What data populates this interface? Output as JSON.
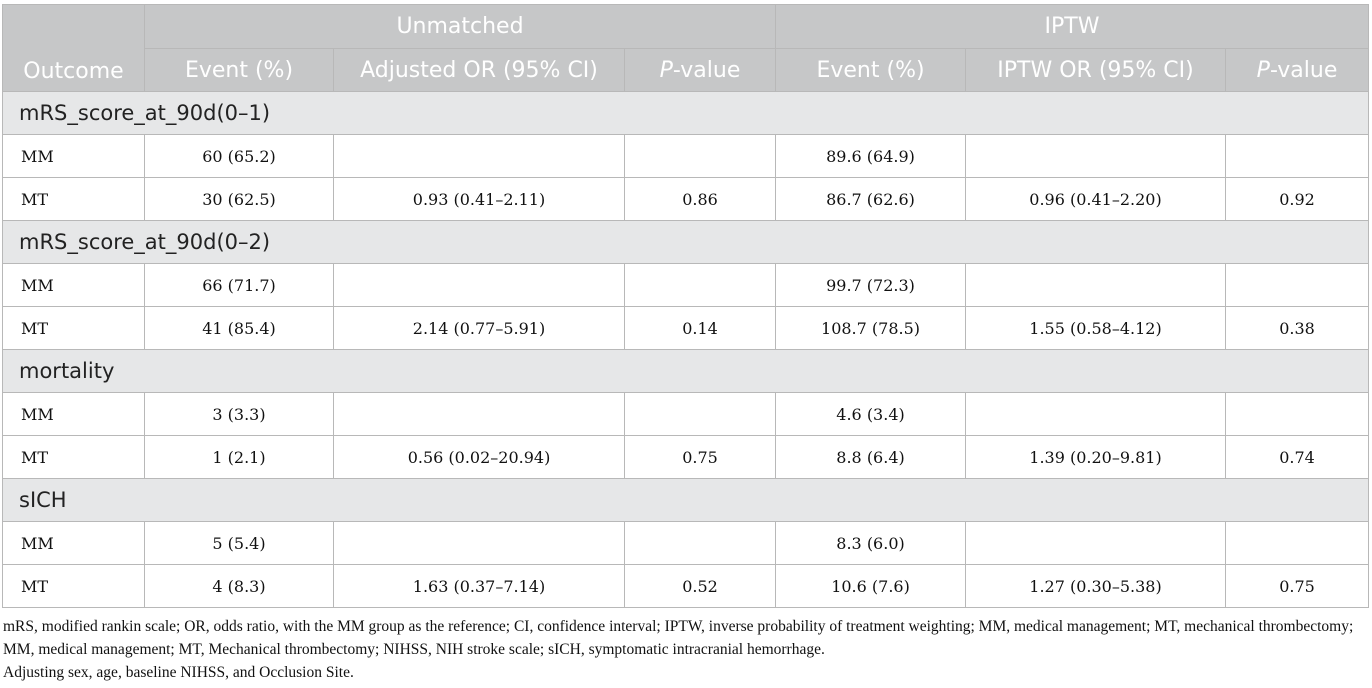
{
  "headers": {
    "outcome": "Outcome",
    "groups": [
      "Unmatched",
      "IPTW"
    ],
    "unmatched_cols": {
      "event": "Event (%)",
      "or": "Adjusted OR (95% CI)",
      "p_italic": "P",
      "p_rest": "-value"
    },
    "iptw_cols": {
      "event": "Event (%)",
      "or": "IPTW OR (95% CI)",
      "p_italic": "P",
      "p_rest": "-value"
    }
  },
  "sections": [
    {
      "title": "mRS_score_at_90d(0–1)",
      "rows": [
        {
          "group": "MM",
          "u_event": "60 (65.2)",
          "u_or": "",
          "u_p": "",
          "i_event": "89.6 (64.9)",
          "i_or": "",
          "i_p": ""
        },
        {
          "group": "MT",
          "u_event": "30 (62.5)",
          "u_or": "0.93 (0.41–2.11)",
          "u_p": "0.86",
          "i_event": "86.7 (62.6)",
          "i_or": "0.96 (0.41–2.20)",
          "i_p": "0.92"
        }
      ]
    },
    {
      "title": "mRS_score_at_90d(0–2)",
      "rows": [
        {
          "group": "MM",
          "u_event": "66 (71.7)",
          "u_or": "",
          "u_p": "",
          "i_event": "99.7 (72.3)",
          "i_or": "",
          "i_p": ""
        },
        {
          "group": "MT",
          "u_event": "41 (85.4)",
          "u_or": "2.14 (0.77–5.91)",
          "u_p": "0.14",
          "i_event": "108.7 (78.5)",
          "i_or": "1.55 (0.58–4.12)",
          "i_p": "0.38"
        }
      ]
    },
    {
      "title": "mortality",
      "rows": [
        {
          "group": "MM",
          "u_event": "3 (3.3)",
          "u_or": "",
          "u_p": "",
          "i_event": "4.6 (3.4)",
          "i_or": "",
          "i_p": ""
        },
        {
          "group": "MT",
          "u_event": "1 (2.1)",
          "u_or": "0.56 (0.02–20.94)",
          "u_p": "0.75",
          "i_event": "8.8 (6.4)",
          "i_or": "1.39 (0.20–9.81)",
          "i_p": "0.74"
        }
      ]
    },
    {
      "title": "sICH",
      "rows": [
        {
          "group": "MM",
          "u_event": "5 (5.4)",
          "u_or": "",
          "u_p": "",
          "i_event": "8.3 (6.0)",
          "i_or": "",
          "i_p": ""
        },
        {
          "group": "MT",
          "u_event": "4 (8.3)",
          "u_or": "1.63 (0.37–7.14)",
          "u_p": "0.52",
          "i_event": "10.6 (7.6)",
          "i_or": "1.27 (0.30–5.38)",
          "i_p": "0.75"
        }
      ]
    }
  ],
  "footnotes": [
    "mRS, modified rankin scale; OR, odds ratio, with the MM group as the reference; CI, confidence interval; IPTW, inverse probability of treatment weighting; MM, medical management; MT, mechanical thrombectomy; MM, medical management; MT, Mechanical thrombectomy; NIHSS, NIH stroke scale; sICH, symptomatic intracranial hemorrhage.",
    "Adjusting sex, age, baseline NIHSS, and Occlusion Site."
  ]
}
